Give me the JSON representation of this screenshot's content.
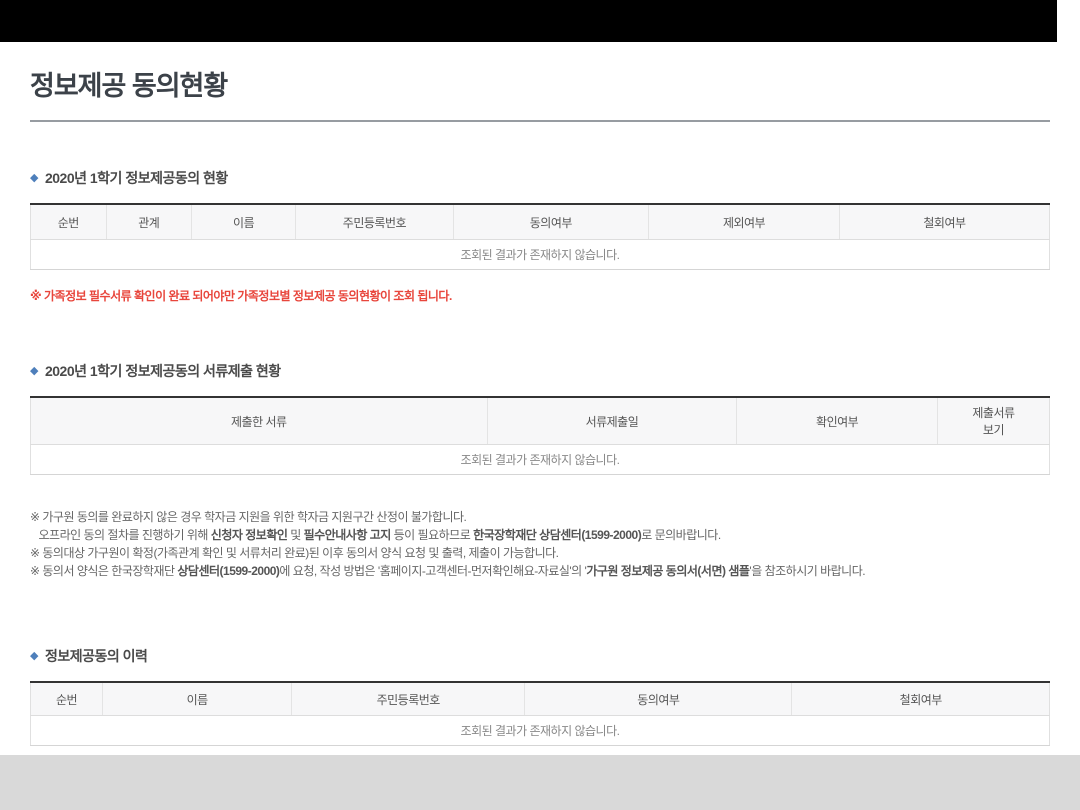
{
  "colors": {
    "accent_blue": "#4e7fbb",
    "warning_red": "#e8463c",
    "title_color": "#3c4249",
    "footer_gray": "#d9d9d9",
    "table_top_border": "#333333"
  },
  "page": {
    "title": "정보제공 동의현황"
  },
  "sections": {
    "consent_status": {
      "bullet": "◆",
      "title": "2020년 1학기 정보제공동의 현황",
      "table": {
        "headers": [
          "순번",
          "관계",
          "이름",
          "주민등록번호",
          "동의여부",
          "제외여부",
          "철회여부"
        ],
        "empty_text": "조회된 결과가 존재하지 않습니다."
      },
      "warning": "※ 가족정보 필수서류 확인이 완료 되어야만 가족정보별 정보제공 동의현황이 조회 됩니다."
    },
    "document_submission": {
      "bullet": "◆",
      "title": "2020년 1학기 정보제공동의 서류제출 현황",
      "table": {
        "headers": [
          "제출한 서류",
          "서류제출일",
          "확인여부",
          "제출서류\n보기"
        ],
        "empty_text": "조회된 결과가 존재하지 않습니다."
      },
      "notes": [
        [
          {
            "t": "※ 가구원 동의를 완료하지 않은 경우 학자금 지원을 위한 학자금 지원구간 산정이 불가합니다.",
            "b": false
          }
        ],
        [
          {
            "t": "   오프라인 동의 절차를 진행하기 위해 ",
            "b": false
          },
          {
            "t": "신청자 정보확인",
            "b": true
          },
          {
            "t": " 및 ",
            "b": false
          },
          {
            "t": "필수안내사항 고지",
            "b": true
          },
          {
            "t": " 등이 필요하므로 ",
            "b": false
          },
          {
            "t": "한국장학재단 상담센터(1599-2000)",
            "b": true
          },
          {
            "t": "로 문의바랍니다.",
            "b": false
          }
        ],
        [
          {
            "t": "※ 동의대상 가구원이 확정(가족관계 확인 및 서류처리 완료)된 이후 동의서 양식 요청 및 출력, 제출이 가능합니다.",
            "b": false
          }
        ],
        [
          {
            "t": "※ 동의서 양식은 한국장학재단 ",
            "b": false
          },
          {
            "t": "상담센터(1599-2000)",
            "b": true
          },
          {
            "t": "에 요청, 작성 방법은 '홈페이지-고객센터-먼저확인해요-자료실'의 '",
            "b": false
          },
          {
            "t": "가구원 정보제공 동의서(서면) 샘플",
            "b": true
          },
          {
            "t": "'을 참조하시기 바랍니다.",
            "b": false
          }
        ]
      ]
    },
    "consent_history": {
      "bullet": "◆",
      "title": "정보제공동의 이력",
      "table": {
        "headers": [
          "순번",
          "이름",
          "주민등록번호",
          "동의여부",
          "철회여부"
        ],
        "empty_text": "조회된 결과가 존재하지 않습니다."
      }
    }
  }
}
